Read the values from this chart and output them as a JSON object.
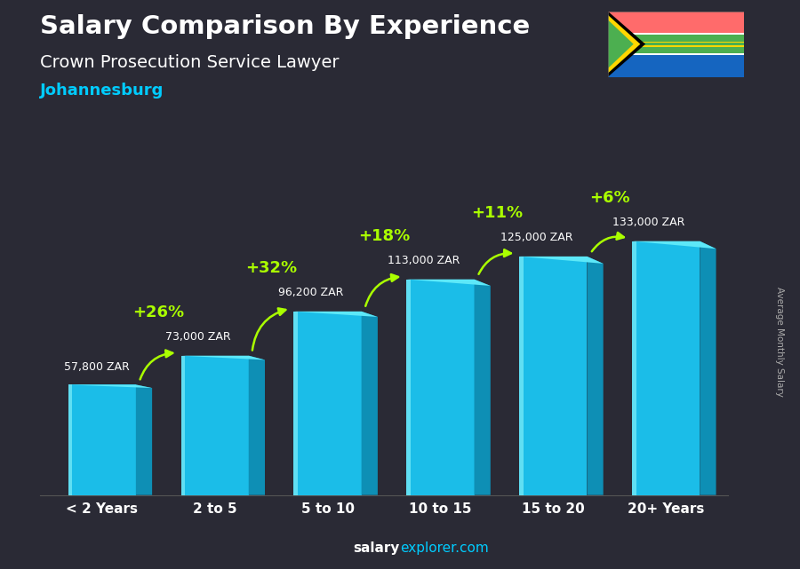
{
  "title_line1": "Salary Comparison By Experience",
  "title_line2": "Crown Prosecution Service Lawyer",
  "city": "Johannesburg",
  "ylabel": "Average Monthly Salary",
  "footer_bold": "salary",
  "footer_normal": "explorer.com",
  "categories": [
    "< 2 Years",
    "2 to 5",
    "5 to 10",
    "10 to 15",
    "15 to 20",
    "20+ Years"
  ],
  "values": [
    57800,
    73000,
    96200,
    113000,
    125000,
    133000
  ],
  "labels": [
    "57,800 ZAR",
    "73,000 ZAR",
    "96,200 ZAR",
    "113,000 ZAR",
    "125,000 ZAR",
    "133,000 ZAR"
  ],
  "pct_changes": [
    null,
    "+26%",
    "+32%",
    "+18%",
    "+11%",
    "+6%"
  ],
  "bar_face_color": "#1bbde8",
  "bar_top_color": "#5de8f8",
  "bar_side_color": "#0e8fb5",
  "bar_highlight": "#7eeef8",
  "bg_color": "#2a2a35",
  "title_color": "#ffffff",
  "subtitle_color": "#ffffff",
  "city_color": "#00ccff",
  "label_color": "#ffffff",
  "pct_color": "#aaff00",
  "arrow_color": "#aaff00",
  "footer_bold_color": "#ffffff",
  "footer_normal_color": "#00ccff",
  "ylabel_color": "#aaaaaa",
  "ylim": [
    0,
    155000
  ],
  "bar_width": 0.6,
  "side_ratio": 0.08
}
